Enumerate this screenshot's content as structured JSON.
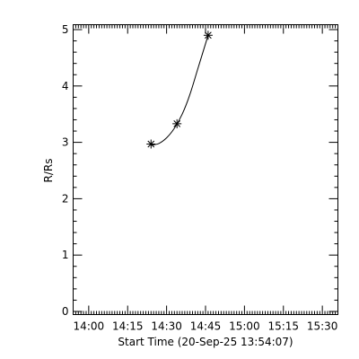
{
  "chart_data": {
    "type": "line",
    "title": "",
    "xlabel": "Start Time (20-Sep-25 13:54:07)",
    "ylabel": "R/Rs",
    "x_tick_labels": [
      "14:00",
      "14:15",
      "14:30",
      "14:45",
      "15:00",
      "15:15",
      "15:30"
    ],
    "x_ticks_minutes": [
      0,
      15,
      30,
      45,
      60,
      75,
      90
    ],
    "xlim_minutes_after_14:00": [
      -6,
      96
    ],
    "y_tick_labels": [
      "0",
      "1",
      "2",
      "3",
      "4",
      "5"
    ],
    "ylim": [
      0,
      5
    ],
    "grid": false,
    "series": [
      {
        "marker": "asterisk",
        "x": [
          "14:24",
          "14:34",
          "14:46"
        ],
        "y": [
          2.97,
          3.33,
          4.9
        ]
      }
    ],
    "fit_curve": {
      "x": [
        "14:24",
        "14:27",
        "14:30",
        "14:33",
        "14:36",
        "14:39",
        "14:42",
        "14:45",
        "14:46"
      ],
      "y": [
        2.95,
        2.98,
        3.08,
        3.25,
        3.5,
        3.85,
        4.3,
        4.75,
        4.9
      ]
    }
  }
}
